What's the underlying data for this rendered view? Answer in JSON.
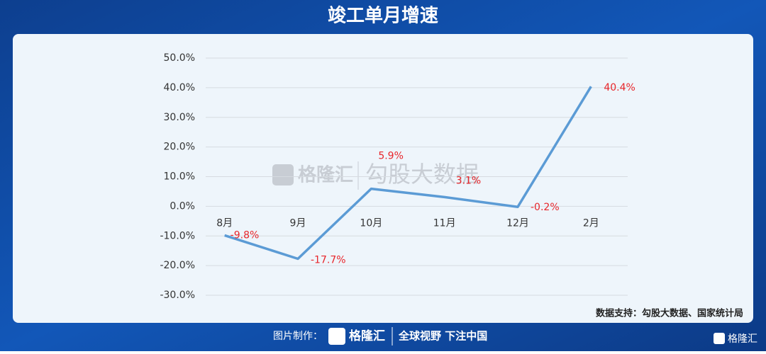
{
  "header": {
    "title": "竣工单月增速"
  },
  "chart_data": {
    "type": "line",
    "categories": [
      "8月",
      "9月",
      "10月",
      "11月",
      "12月",
      "2月"
    ],
    "series": [
      {
        "name": "竣工单月增速",
        "color": "#5b9bd5",
        "values": [
          -9.8,
          -17.7,
          5.9,
          3.1,
          -0.2,
          40.4
        ],
        "value_labels": [
          "-9.8%",
          "-17.7%",
          "5.9%",
          "3.1%",
          "-0.2%",
          "40.4%"
        ]
      }
    ],
    "ylim": [
      -30,
      50
    ],
    "yticks": [
      {
        "value": -30,
        "label": "-30.0%"
      },
      {
        "value": -20,
        "label": "-20.0%"
      },
      {
        "value": -10,
        "label": "-10.0%"
      },
      {
        "value": 0,
        "label": "0.0%"
      },
      {
        "value": 10,
        "label": "10.0%"
      },
      {
        "value": 20,
        "label": "20.0%"
      },
      {
        "value": 30,
        "label": "30.0%"
      },
      {
        "value": 40,
        "label": "40.0%"
      },
      {
        "value": 50,
        "label": "50.0%"
      }
    ],
    "grid": true,
    "label_color": "#e8262b",
    "source": "数据支持：勾股大数据、国家统计局",
    "watermark": [
      "格隆汇",
      "勾股大数据"
    ]
  },
  "footer": {
    "made_by": "图片制作：",
    "brand": "格隆汇",
    "slogan": "全球视野 下注中国",
    "corner_brand": "格隆汇"
  }
}
